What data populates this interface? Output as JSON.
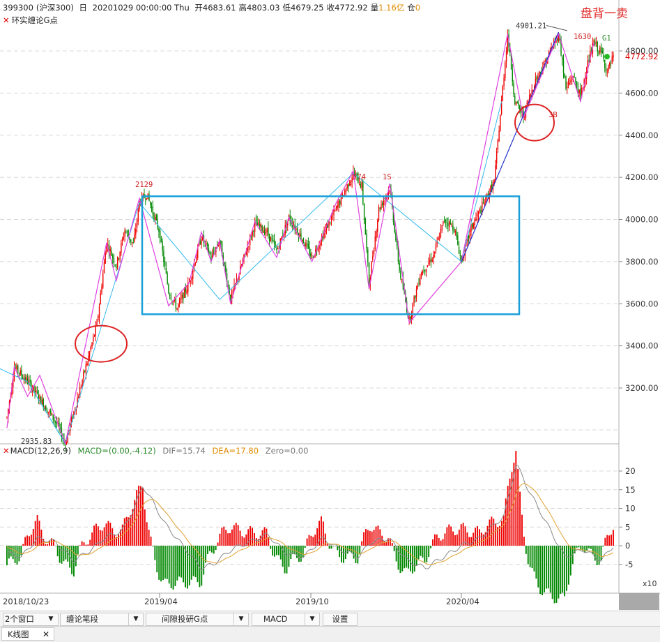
{
  "header": {
    "code": "399300",
    "name": "(沪深300)",
    "period": "日",
    "datetime": "20201029 00:00:00 Thu",
    "open_label": "开",
    "open": "4683.61",
    "high_label": "高",
    "high": "4803.03",
    "low_label": "低",
    "low": "4679.25",
    "close_label": "收",
    "close": "4772.92",
    "volume_label": "量",
    "volume": "1.16亿",
    "position_label": "仓",
    "position": "0"
  },
  "overlay_indicator": "环实缠论G点",
  "annotation": "盘背一卖",
  "price_axis": {
    "ticks": [
      "4800.00",
      "4600.00",
      "4400.00",
      "4200.00",
      "4000.00",
      "3800.00",
      "3600.00",
      "3400.00",
      "3200.00"
    ],
    "last_price": "4772.92"
  },
  "chart_labels": {
    "high_1": "4901.21",
    "low_1": "2935.83",
    "peak_a": "2129",
    "peak_b": "174",
    "peak_c": "1S",
    "peak_d": "1630",
    "point_3b": "3B",
    "point_g1": "G1"
  },
  "macd": {
    "title": "MACD(12,26,9)",
    "value": "MACD=(0.00,-4.12)",
    "dif": "DIF=15.74",
    "dea": "DEA=17.80",
    "zero": "Zero=0.00",
    "ticks": [
      "20",
      "15",
      "10",
      "5",
      "0",
      "-5"
    ],
    "scale": "x10"
  },
  "date_axis": [
    "2018/10/23",
    "2019/04",
    "2019/10",
    "2020/04"
  ],
  "toolbar": {
    "windows": "2个窗口",
    "bi": "缠论笔段",
    "indicator": "间隙投研G点",
    "macd": "MACD",
    "settings": "设置",
    "drop": "▼"
  },
  "tab": {
    "label": "K线图",
    "close": "✕"
  },
  "colors": {
    "up": "#ee0000",
    "down": "#008800",
    "zigzag": "#e040e0",
    "segment": "#33bbee",
    "trend": "#2233cc",
    "box": "#1aa0d8",
    "circle": "#dd2222",
    "dif": "#888888",
    "dea": "#e0a030"
  }
}
